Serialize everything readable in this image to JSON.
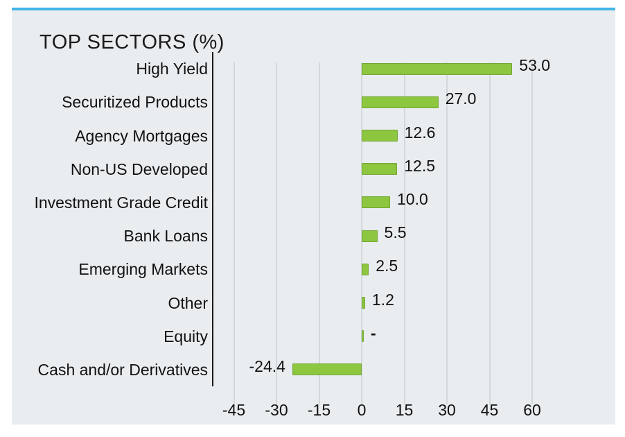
{
  "page": {
    "accent_color": "#41b4e5",
    "panel_bg": "#e9edf0"
  },
  "chart_data": {
    "type": "bar",
    "orientation": "horizontal",
    "title": "TOP SECTORS (%)",
    "categories": [
      "High Yield",
      "Securitized Products",
      "Agency Mortgages",
      "Non-US Developed",
      "Investment Grade Credit",
      "Bank Loans",
      "Emerging Markets",
      "Other",
      "Equity",
      "Cash and/or Derivatives"
    ],
    "values": [
      53.0,
      27.0,
      12.6,
      12.5,
      10.0,
      5.5,
      2.5,
      1.2,
      0.0,
      -24.4
    ],
    "value_labels": [
      "53.0",
      "27.0",
      "12.6",
      "12.5",
      "10.0",
      "5.5",
      "2.5",
      "1.2",
      "-",
      "-24.4"
    ],
    "x_ticks": [
      -45,
      -30,
      -15,
      0,
      15,
      30,
      45,
      60
    ],
    "xlim": [
      -52,
      89
    ],
    "grid": "vertical-gridlines",
    "legend": "none",
    "bar_color": "#8dc63f",
    "bar_border_color": "#74a736",
    "gridline_color": "#d3d8db",
    "axis_line_color": "#1a1a1a",
    "text_color": "#111111"
  }
}
